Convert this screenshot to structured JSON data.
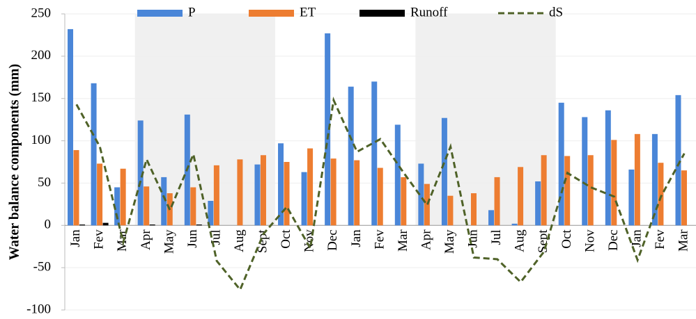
{
  "chart_data": {
    "type": "bar",
    "y_label": "Water balance components (mm)",
    "categories": [
      "Jan",
      "Fev",
      "Mar",
      "Apr",
      "May",
      "Jun",
      "Jul",
      "Aug",
      "Sept",
      "Oct",
      "Nov",
      "Dec",
      "Jan",
      "Fev",
      "Mar",
      "Apr",
      "May",
      "Jun",
      "Jul",
      "Aug",
      "Sept",
      "Oct",
      "Nov",
      "Dec",
      "Jan",
      "Fev",
      "Mar"
    ],
    "series": [
      {
        "name": "P",
        "type": "bar",
        "color": "#4a86d8",
        "values": [
          232,
          168,
          45,
          124,
          57,
          131,
          29,
          0,
          72,
          97,
          63,
          227,
          164,
          170,
          119,
          73,
          127,
          0,
          18,
          2,
          52,
          145,
          128,
          136,
          66,
          108,
          154
        ]
      },
      {
        "name": "ET",
        "type": "bar",
        "color": "#ed7d31",
        "values": [
          89,
          73,
          67,
          46,
          38,
          45,
          71,
          78,
          83,
          75,
          91,
          79,
          77,
          68,
          57,
          49,
          35,
          38,
          57,
          69,
          83,
          82,
          83,
          101,
          108,
          74,
          65
        ]
      },
      {
        "name": "Runoff",
        "type": "bar",
        "color": "#000000",
        "values": [
          1,
          3,
          0,
          1,
          0,
          1,
          0,
          0,
          0,
          0,
          0,
          0,
          0,
          0,
          0,
          0,
          0,
          0,
          0,
          0,
          0,
          0,
          0,
          0,
          0,
          0,
          0
        ]
      },
      {
        "name": "dS",
        "type": "line",
        "color": "#4f6228",
        "values": [
          143,
          93,
          -20,
          78,
          18,
          84,
          -42,
          -76,
          -10,
          22,
          -27,
          148,
          87,
          102,
          62,
          24,
          93,
          -38,
          -40,
          -67,
          -31,
          62,
          45,
          34,
          -41,
          34,
          85
        ]
      }
    ],
    "ylim": [
      -100,
      250
    ],
    "yticks": [
      -100,
      -50,
      0,
      50,
      100,
      150,
      200,
      250
    ],
    "grid": true,
    "legend": "top"
  }
}
